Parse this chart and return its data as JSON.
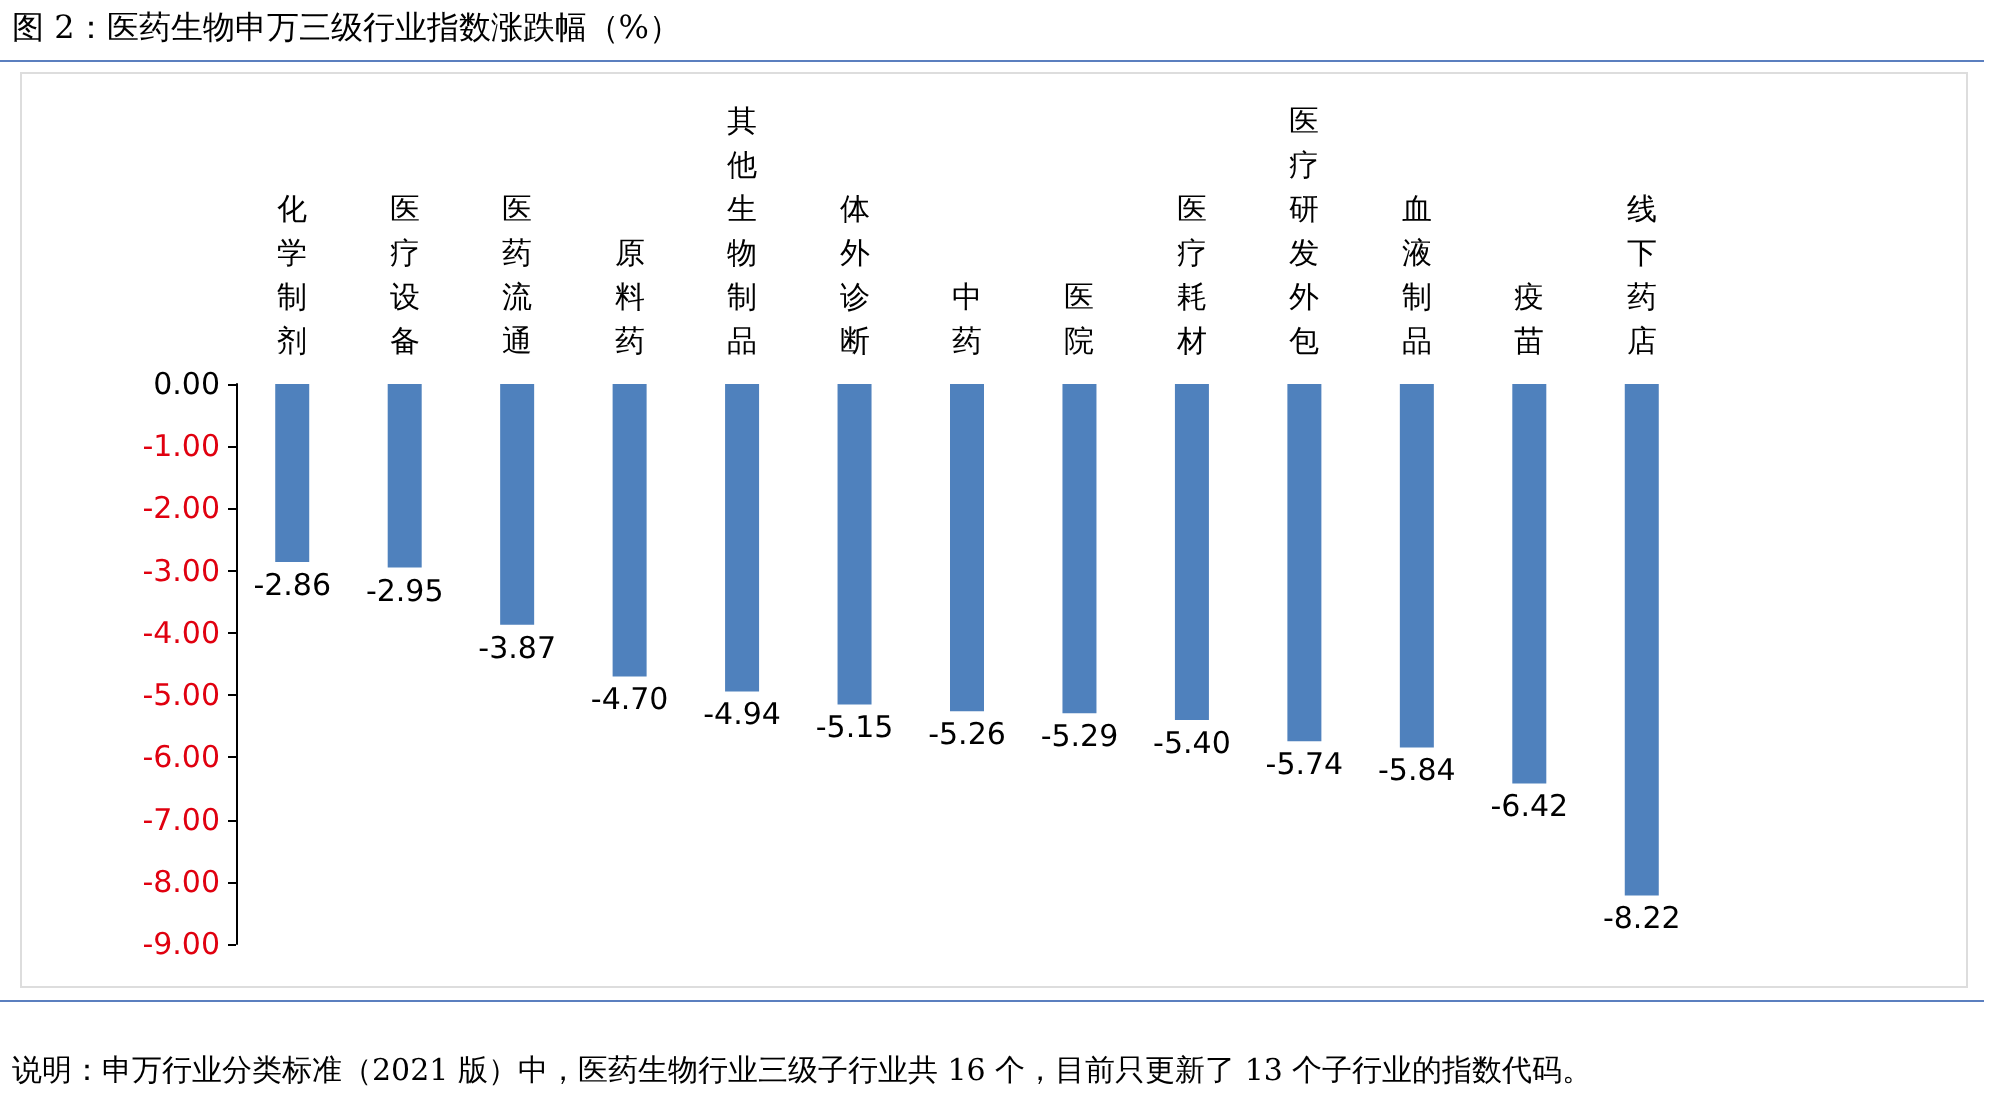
{
  "chart_data": {
    "type": "bar",
    "title": "图 2：医药生物申万三级行业指数涨跌幅（%）",
    "categories": [
      "化学制剂",
      "医疗设备",
      "医药流通",
      "原料药",
      "其他生物制品",
      "体外诊断",
      "中药",
      "医院",
      "医疗耗材",
      "医疗研发外包",
      "血液制品",
      "疫苗",
      "线下药店"
    ],
    "values": [
      -2.86,
      -2.95,
      -3.87,
      -4.7,
      -4.94,
      -5.15,
      -5.26,
      -5.29,
      -5.4,
      -5.74,
      -5.84,
      -6.42,
      -8.22
    ],
    "color": "#4f81bd",
    "grid": false,
    "value_labels": [
      "-2.86",
      "-2.95",
      "-3.87",
      "-4.70",
      "-4.94",
      "-5.15",
      "-5.26",
      "-5.29",
      "-5.40",
      "-5.74",
      "-5.84",
      "-6.42",
      "-8.22"
    ],
    "ylim": [
      -9,
      0
    ],
    "yticks": [
      {
        "value": 0,
        "label": "0.00"
      },
      {
        "value": -1,
        "label": "-1.00"
      },
      {
        "value": -2,
        "label": "-2.00"
      },
      {
        "value": -3,
        "label": "-3.00"
      },
      {
        "value": -4,
        "label": "-4.00"
      },
      {
        "value": -5,
        "label": "-5.00"
      },
      {
        "value": -6,
        "label": "-6.00"
      },
      {
        "value": -7,
        "label": "-7.00"
      },
      {
        "value": -8,
        "label": "-8.00"
      },
      {
        "value": -9,
        "label": "-9.00"
      }
    ],
    "annotations": [
      "说明：申万行业分类标准（2021 版）中，医药生物行业三级子行业共 16 个，目前只更新了 13 个子行业的指数代码。"
    ]
  }
}
